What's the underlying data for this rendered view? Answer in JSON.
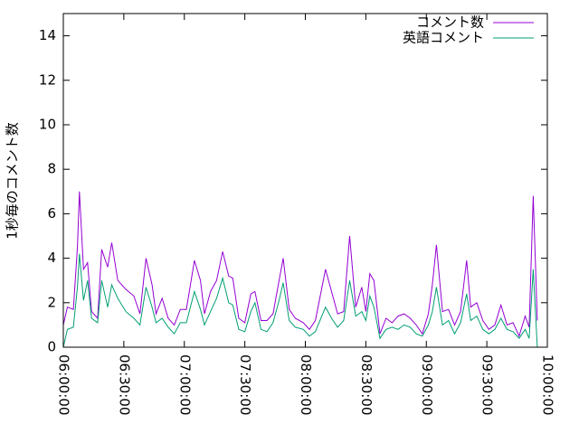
{
  "chart_data": {
    "type": "line",
    "ylabel": "1秒毎のコメント数",
    "x": [
      "06:00:00",
      "06:02:00",
      "06:05:00",
      "06:07:00",
      "06:08:00",
      "06:10:00",
      "06:12:00",
      "06:14:00",
      "06:17:00",
      "06:19:00",
      "06:22:00",
      "06:24:00",
      "06:27:00",
      "06:31:00",
      "06:35:00",
      "06:38:00",
      "06:41:00",
      "06:44:00",
      "06:46:00",
      "06:49:00",
      "06:52:00",
      "06:55:00",
      "06:58:00",
      "07:01:00",
      "07:05:00",
      "07:08:00",
      "07:10:00",
      "07:13:00",
      "07:16:00",
      "07:19:00",
      "07:22:00",
      "07:24:00",
      "07:27:00",
      "07:30:00",
      "07:33:00",
      "07:35:00",
      "07:38:00",
      "07:41:00",
      "07:44:00",
      "07:47:00",
      "07:49:00",
      "07:52:00",
      "07:55:00",
      "07:59:00",
      "08:02:00",
      "08:05:00",
      "08:10:00",
      "08:13:00",
      "08:16:00",
      "08:19:00",
      "08:22:00",
      "08:25:00",
      "08:28:00",
      "08:30:00",
      "08:32:00",
      "08:34:00",
      "08:37:00",
      "08:40:00",
      "08:43:00",
      "08:46:00",
      "08:49:00",
      "08:52:00",
      "08:55:00",
      "08:58:00",
      "09:01:00",
      "09:03:00",
      "09:05:00",
      "09:08:00",
      "09:11:00",
      "09:14:00",
      "09:17:00",
      "09:20:00",
      "09:22:00",
      "09:25:00",
      "09:28:00",
      "09:31:00",
      "09:34:00",
      "09:37:00",
      "09:40:00",
      "09:43:00",
      "09:46:00",
      "09:49:00",
      "09:51:00",
      "09:53:00",
      "09:55:00"
    ],
    "series": [
      {
        "name": "コメント数",
        "color": "#9400d3",
        "values": [
          1.0,
          1.8,
          1.7,
          4.5,
          7.0,
          3.5,
          3.8,
          1.6,
          1.3,
          4.4,
          3.6,
          4.7,
          3.0,
          2.6,
          2.3,
          1.5,
          4.0,
          2.8,
          1.5,
          2.2,
          1.3,
          1.0,
          1.7,
          1.7,
          3.9,
          3.0,
          1.5,
          2.5,
          3.0,
          4.3,
          3.2,
          3.1,
          1.3,
          1.1,
          2.4,
          2.5,
          1.2,
          1.2,
          1.5,
          3.0,
          4.0,
          1.7,
          1.3,
          1.1,
          0.8,
          1.2,
          3.5,
          2.5,
          1.5,
          1.6,
          5.0,
          1.8,
          2.7,
          1.6,
          3.3,
          3.0,
          0.6,
          1.3,
          1.1,
          1.4,
          1.5,
          1.3,
          1.0,
          0.6,
          1.5,
          2.8,
          4.6,
          1.6,
          1.7,
          1.0,
          1.6,
          3.9,
          1.8,
          2.0,
          1.2,
          0.8,
          1.0,
          1.9,
          1.0,
          1.1,
          0.5,
          1.4,
          0.9,
          6.8,
          1.2
        ]
      },
      {
        "name": "英語コメント",
        "color": "#009e73",
        "values": [
          0.0,
          0.8,
          0.9,
          2.7,
          4.2,
          2.1,
          3.0,
          1.3,
          1.1,
          3.0,
          1.8,
          2.8,
          2.2,
          1.6,
          1.3,
          1.0,
          2.7,
          1.8,
          1.1,
          1.3,
          0.9,
          0.6,
          1.1,
          1.1,
          2.5,
          1.7,
          1.0,
          1.6,
          2.2,
          3.1,
          2.0,
          1.9,
          0.8,
          0.7,
          1.6,
          2.0,
          0.8,
          0.7,
          1.1,
          2.1,
          2.9,
          1.2,
          0.9,
          0.8,
          0.5,
          0.7,
          1.8,
          1.3,
          0.9,
          1.2,
          3.0,
          1.4,
          1.6,
          1.2,
          2.3,
          1.8,
          0.4,
          0.8,
          0.9,
          0.8,
          1.0,
          0.9,
          0.6,
          0.5,
          1.0,
          1.6,
          2.7,
          1.0,
          1.2,
          0.6,
          1.1,
          2.4,
          1.2,
          1.4,
          0.8,
          0.6,
          0.8,
          1.3,
          0.8,
          0.7,
          0.4,
          0.8,
          0.4,
          3.5,
          0.0
        ]
      }
    ],
    "xlim": [
      "06:00:00",
      "10:00:00"
    ],
    "xticks": [
      "06:00:00",
      "06:30:00",
      "07:00:00",
      "07:30:00",
      "08:00:00",
      "08:30:00",
      "09:00:00",
      "09:30:00",
      "10:00:00"
    ],
    "ylim": [
      0,
      15
    ],
    "yticks": [
      0,
      2,
      4,
      6,
      8,
      10,
      12,
      14
    ],
    "grid": false,
    "legend": "top-right"
  }
}
